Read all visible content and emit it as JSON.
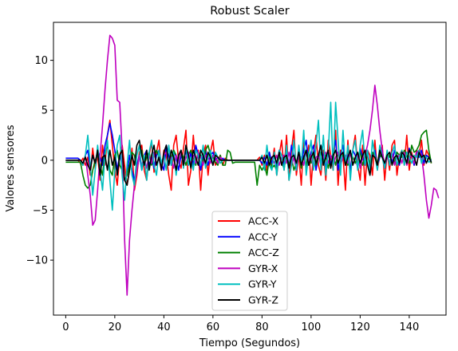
{
  "chart_data": {
    "type": "line",
    "title": "Robust Scaler",
    "xlabel": "Tiempo (Segundos)",
    "ylabel": "Valores sensores",
    "xlim": [
      -5,
      155
    ],
    "ylim": [
      -15.5,
      13.8
    ],
    "xticks": [
      0,
      20,
      40,
      60,
      80,
      100,
      120,
      140
    ],
    "yticks": [
      -10,
      -5,
      0,
      5,
      10
    ],
    "ytick_labels": [
      "−10",
      "−5",
      "0",
      "5",
      "10"
    ],
    "grid": false,
    "legend_position": "lower-center",
    "x_start": 0,
    "x_step": 1,
    "series": [
      {
        "name": "ACC-X",
        "color": "#ff0000",
        "values": [
          0,
          0,
          0,
          0,
          0,
          0,
          -0.3,
          0.2,
          -0.5,
          0.3,
          -1.5,
          1.2,
          -0.8,
          0.5,
          -2,
          1.5,
          -0.5,
          2.5,
          4.0,
          1.5,
          -1.0,
          -2.5,
          0.5,
          1.5,
          -0.5,
          -2.5,
          -1.0,
          1.2,
          -3.0,
          -1.5,
          0.8,
          1.5,
          -1.0,
          -2.0,
          0.5,
          1.8,
          -1.2,
          0.8,
          2.0,
          -1.0,
          1.0,
          0.5,
          -1.5,
          -3.0,
          1.5,
          2.5,
          0.0,
          -0.8,
          1.2,
          3.0,
          -2.5,
          -1.0,
          2.5,
          -0.5,
          1.0,
          -3.0,
          0.5,
          1.5,
          -1.5,
          0.8,
          2.0,
          -0.5,
          0.0,
          0.5,
          -0.5,
          0.2,
          0.0,
          0,
          0,
          0,
          0,
          0,
          0,
          0,
          0,
          0,
          0,
          0,
          0,
          0.3,
          -0.5,
          0.5,
          -1.0,
          0.8,
          -0.5,
          1.2,
          -1.5,
          0.5,
          2.0,
          -1.0,
          2.5,
          -2.0,
          1.0,
          3.0,
          -1.5,
          0.5,
          -2.5,
          2.0,
          -1.0,
          1.5,
          -2.5,
          0.8,
          2.5,
          -0.5,
          -1.5,
          1.0,
          -2.0,
          2.0,
          0.5,
          -1.0,
          3.0,
          -2.5,
          1.0,
          0.5,
          -3.0,
          2.0,
          -1.5,
          1.0,
          2.5,
          -0.5,
          -2.0,
          1.5,
          -2.5,
          1.0,
          0.5,
          -1.5,
          2.0,
          -1.0,
          0.5,
          1.5,
          -2.0,
          0.8,
          -1.0,
          1.5,
          2.0,
          -1.5,
          0.5,
          1.0,
          -0.5,
          2.5,
          -1.0,
          0.8,
          -0.5,
          1.0,
          0.5,
          2.0,
          -0.5,
          1.0,
          0.5,
          -0.3
        ]
      },
      {
        "name": "ACC-Y",
        "color": "#0000ff",
        "values": [
          0.2,
          0.2,
          0.2,
          0.2,
          0.2,
          0.2,
          0.0,
          -0.5,
          0.5,
          1.0,
          -0.8,
          0.5,
          -0.3,
          1.0,
          0.3,
          -0.5,
          1.5,
          2.5,
          3.7,
          2.5,
          1.0,
          -1.0,
          0.5,
          -0.5,
          -2.0,
          -1.5,
          0.5,
          -1.0,
          -2.0,
          -0.5,
          0.5,
          -1.0,
          0.5,
          1.0,
          -0.5,
          0.3,
          -0.8,
          0.5,
          1.0,
          -0.3,
          -1.0,
          1.5,
          0.5,
          -0.5,
          1.0,
          0.3,
          -1.0,
          0.5,
          -0.3,
          1.0,
          -0.5,
          0.8,
          -0.5,
          1.5,
          0.5,
          -1.0,
          0.3,
          1.0,
          -0.5,
          0.5,
          0.8,
          0.0,
          0.3,
          0.0,
          0.2,
          0.0,
          0.0,
          0,
          0,
          0,
          0,
          0,
          0,
          0,
          0,
          0,
          0,
          0,
          0,
          0,
          -0.3,
          0.3,
          -0.5,
          0.8,
          -0.3,
          0.5,
          -0.8,
          1.0,
          0.5,
          -0.5,
          1.2,
          -0.8,
          1.5,
          0.3,
          -1.0,
          0.8,
          -0.5,
          1.0,
          2.0,
          -0.5,
          0.8,
          1.5,
          -1.0,
          0.5,
          1.5,
          0.3,
          -0.8,
          1.0,
          -0.5,
          0.8,
          2.0,
          -1.0,
          0.5,
          1.5,
          -0.5,
          0.5,
          -1.0,
          1.0,
          0.5,
          -0.8,
          1.2,
          0.3,
          -0.5,
          1.0,
          -0.8,
          0.5,
          1.0,
          -0.5,
          0.3,
          1.0,
          -0.8,
          0.5,
          0.8,
          -0.3,
          1.0,
          0.5,
          -0.5,
          0.8,
          0.3,
          -0.3,
          1.2,
          0.5,
          -0.5,
          0.8,
          0.3,
          1.0,
          -0.3,
          0.5,
          0.3,
          0.0
        ]
      },
      {
        "name": "ACC-Z",
        "color": "#008000",
        "values": [
          -0.2,
          -0.2,
          -0.2,
          -0.2,
          -0.2,
          -0.2,
          -0.2,
          -1.5,
          -2.5,
          -2.8,
          -2.5,
          -1.0,
          0.0,
          0.5,
          -0.5,
          -1.5,
          0.8,
          1.5,
          -1.0,
          -1.5,
          0.5,
          1.0,
          -0.5,
          -1.0,
          -2.0,
          -1.5,
          -0.5,
          0.8,
          0.5,
          -1.0,
          0.5,
          1.0,
          -0.5,
          0.3,
          0.8,
          -0.5,
          0.5,
          1.0,
          0.3,
          -0.8,
          0.5,
          0.8,
          -0.5,
          0.3,
          1.0,
          0.5,
          -0.3,
          0.8,
          0.3,
          -0.5,
          0.5,
          1.0,
          0.3,
          -0.5,
          0.8,
          0.5,
          -0.3,
          1.0,
          1.5,
          0.5,
          0.3,
          -0.2,
          -0.5,
          0.5,
          -0.5,
          -0.5,
          1.0,
          0.8,
          -0.3,
          -0.2,
          -0.2,
          -0.2,
          -0.2,
          -0.2,
          -0.2,
          -0.2,
          -0.2,
          -0.2,
          -2.5,
          -0.5,
          -1.0,
          -0.5,
          -1.5,
          0.3,
          -0.8,
          -0.5,
          -1.0,
          0.5,
          -0.3,
          -0.8,
          0.5,
          -0.5,
          0.3,
          -1.0,
          -0.3,
          0.5,
          -0.8,
          0.3,
          -0.5,
          0.8,
          -0.3,
          0.5,
          -0.5,
          0.3,
          0.8,
          -0.3,
          0.5,
          -0.8,
          0.3,
          0.5,
          -0.5,
          0.8,
          -0.3,
          0.5,
          0.3,
          -0.5,
          0.8,
          0.3,
          -0.3,
          0.5,
          0.8,
          -0.5,
          0.3,
          0.5,
          -0.3,
          0.8,
          0.5,
          -0.3,
          0.5,
          0.3,
          -0.5,
          0.8,
          0.3,
          0.5,
          -0.3,
          0.8,
          0.5,
          0.3,
          1.0,
          0.5,
          -0.3,
          1.5,
          0.8,
          1.0,
          1.5,
          2.5,
          2.8,
          3.0,
          1.0,
          -0.3
        ]
      },
      {
        "name": "GYR-X",
        "color": "#bf00bf",
        "values": [
          0.0,
          0.0,
          0.0,
          0.0,
          0.0,
          0.0,
          0.0,
          -0.5,
          0.5,
          -1.5,
          -3.5,
          -6.5,
          -6.0,
          -3.0,
          0.5,
          3.5,
          7.0,
          10.0,
          12.5,
          12.2,
          11.5,
          6.0,
          5.8,
          1.0,
          -8.0,
          -13.5,
          -8.0,
          -5.0,
          -2.5,
          -1.0,
          0.5,
          -0.5,
          0.3,
          -0.8,
          0.5,
          -0.3,
          0.8,
          -0.5,
          0.3,
          -1.0,
          0.5,
          0.8,
          -0.5,
          0.3,
          -0.8,
          0.5,
          -0.3,
          1.0,
          -0.5,
          0.3,
          0.8,
          -0.5,
          0.5,
          -0.3,
          0.8,
          0.3,
          -0.5,
          0.5,
          0.3,
          -0.3,
          0.5,
          0.3,
          -0.3,
          0.3,
          0.0,
          0.0,
          0.0,
          0,
          0,
          0,
          0,
          0,
          0,
          0,
          0,
          0,
          0,
          0,
          0,
          0,
          0.3,
          -0.3,
          0.5,
          -0.5,
          0.3,
          -0.3,
          0.5,
          -0.5,
          0.3,
          0.5,
          -0.3,
          0.8,
          -0.5,
          0.3,
          -0.8,
          0.5,
          0.3,
          -0.5,
          0.8,
          -0.3,
          0.5,
          -0.8,
          0.3,
          0.5,
          -0.5,
          0.3,
          0.8,
          -0.3,
          0.5,
          -0.5,
          0.3,
          0.8,
          -0.5,
          0.3,
          0.5,
          -0.3,
          0.8,
          -0.5,
          0.3,
          0.5,
          -0.8,
          0.3,
          0.5,
          1.5,
          3.0,
          5.0,
          7.5,
          5.5,
          3.0,
          1.0,
          -0.5,
          0.5,
          -0.3,
          0.8,
          -0.5,
          0.3,
          0.5,
          -0.3,
          0.8,
          -0.5,
          0.3,
          0.5,
          -0.3,
          0.8,
          1.0,
          0.5,
          -1.5,
          -4.0,
          -5.8,
          -4.5,
          -2.8,
          -3.0,
          -3.8
        ]
      },
      {
        "name": "GYR-Y",
        "color": "#00bfbf",
        "values": [
          0.0,
          0.0,
          0.0,
          0.0,
          0.0,
          0.0,
          0.0,
          -0.5,
          0.5,
          2.5,
          -0.5,
          -3.5,
          -1.0,
          1.5,
          -1.0,
          -3.0,
          0.5,
          2.0,
          -2.0,
          -5.0,
          -1.0,
          1.5,
          2.5,
          -1.5,
          -4.0,
          -0.5,
          2.0,
          -1.5,
          -2.5,
          0.5,
          1.5,
          -1.0,
          0.5,
          -2.0,
          0.8,
          2.0,
          -0.5,
          -1.5,
          1.0,
          -0.3,
          0.5,
          -1.0,
          1.5,
          -0.5,
          0.8,
          -1.5,
          0.5,
          1.0,
          -0.8,
          1.5,
          -0.5,
          0.3,
          -1.0,
          1.0,
          0.5,
          -0.5,
          1.5,
          -0.8,
          0.3,
          1.0,
          -0.5,
          0.8,
          0.3,
          -0.3,
          0.0,
          0.0,
          0.0,
          0,
          0,
          0,
          0,
          0,
          0,
          0,
          0,
          0,
          0,
          0,
          0,
          0,
          0.5,
          -1.0,
          1.5,
          -0.5,
          -1.0,
          0.8,
          -1.5,
          1.0,
          0.5,
          -1.0,
          1.5,
          -2.0,
          -0.5,
          2.0,
          -1.0,
          1.5,
          -0.5,
          3.0,
          -1.5,
          0.5,
          2.0,
          -1.0,
          1.5,
          4.0,
          -1.0,
          2.5,
          -1.5,
          0.8,
          5.8,
          -1.0,
          5.8,
          2.0,
          -1.5,
          3.0,
          -0.5,
          1.5,
          -2.0,
          1.0,
          2.0,
          -1.0,
          1.5,
          3.0,
          -0.5,
          1.0,
          -1.5,
          2.0,
          0.5,
          -1.0,
          1.5,
          0.3,
          -0.8,
          1.0,
          -0.5,
          0.8,
          1.5,
          -0.5,
          0.3,
          1.0,
          -0.5,
          0.8,
          0.3,
          -0.3,
          0.5,
          0.3,
          1.0,
          -0.3,
          0.5,
          0.3,
          -0.2,
          0.0
        ]
      },
      {
        "name": "GYR-Z",
        "color": "#000000",
        "values": [
          0.0,
          0.0,
          0.0,
          0.0,
          0.0,
          0.0,
          0.0,
          -0.3,
          0.3,
          -0.5,
          -1.0,
          0.5,
          -0.3,
          1.0,
          -1.5,
          0.3,
          0.5,
          -1.0,
          1.0,
          -0.5,
          0.3,
          -1.5,
          0.5,
          1.0,
          -2.0,
          -2.5,
          -1.0,
          0.5,
          -0.5,
          1.5,
          2.0,
          0.5,
          -0.5,
          1.0,
          -1.0,
          0.5,
          1.5,
          -0.5,
          0.3,
          -1.0,
          0.8,
          1.5,
          -0.5,
          1.0,
          0.3,
          -1.0,
          0.5,
          1.0,
          -0.5,
          1.5,
          0.5,
          -0.8,
          1.0,
          0.3,
          -0.5,
          1.0,
          0.5,
          -0.3,
          0.8,
          0.3,
          -0.5,
          0.5,
          0.3,
          0.0,
          0.0,
          0.0,
          0.0,
          0,
          0,
          0,
          0,
          0,
          0,
          0,
          0,
          0,
          0,
          0,
          0,
          0,
          0.3,
          -0.3,
          0.5,
          -0.5,
          0.3,
          0.5,
          -0.3,
          0.8,
          -0.5,
          0.3,
          0.5,
          -0.8,
          0.3,
          0.5,
          -0.3,
          0.8,
          -0.5,
          0.3,
          1.0,
          -0.5,
          0.3,
          0.8,
          -0.3,
          0.5,
          1.5,
          -0.5,
          0.3,
          1.0,
          -0.8,
          0.5,
          1.0,
          -0.3,
          0.5,
          0.8,
          -0.5,
          0.3,
          1.0,
          -0.5,
          0.3,
          0.8,
          -0.3,
          0.5,
          1.0,
          -0.5,
          -1.5,
          0.5,
          0.3,
          -0.5,
          1.0,
          0.3,
          -0.3,
          0.5,
          0.8,
          -0.5,
          0.3,
          0.5,
          -0.3,
          0.8,
          0.5,
          -0.3,
          1.0,
          0.5,
          0.3,
          -0.5,
          0.8,
          0.3,
          0.5,
          -0.3,
          0.3,
          -0.2
        ]
      }
    ]
  }
}
